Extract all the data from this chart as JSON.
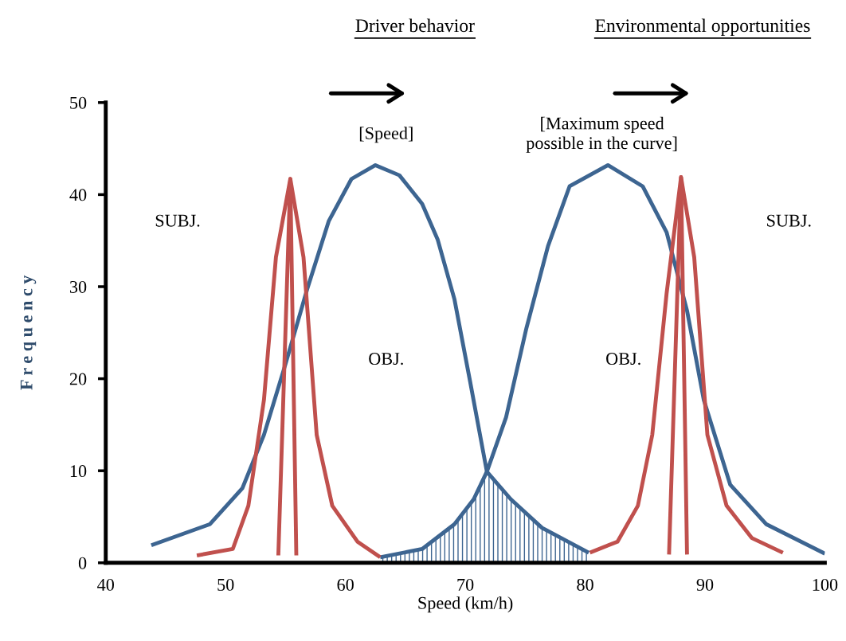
{
  "chart_data": {
    "type": "line",
    "xlabel": "Speed (km/h)",
    "ylabel": "F r e q u e n c y",
    "xlim": [
      40,
      100
    ],
    "xticks": [
      40,
      50,
      60,
      70,
      80,
      90,
      100
    ],
    "ylim": [
      0,
      50
    ],
    "yticks": [
      0,
      10,
      20,
      30,
      40,
      50
    ],
    "grid": false,
    "legend": false,
    "marker": "none",
    "line_style": "solid",
    "series": [
      {
        "type": "area",
        "color": "#3d6591",
        "x": [
          62.9,
          66.4,
          69.1,
          70.7,
          71.8,
          73.8,
          76.4,
          80.3
        ],
        "values": [
          0.6,
          1.5,
          4.2,
          6.9,
          9.9,
          6.9,
          3.8,
          1.1
        ]
      },
      {
        "color": "#3d6591",
        "x": [
          43.8,
          48.7,
          51.4,
          53.2,
          55.0,
          56.8,
          58.6,
          60.5,
          62.5,
          64.5,
          66.4,
          67.7,
          69.1,
          70.4,
          71.8,
          73.8,
          76.4,
          80.3
        ],
        "values": [
          1.9,
          4.2,
          8.1,
          13.9,
          21.6,
          29.7,
          37.1,
          41.7,
          43.2,
          42.1,
          39.0,
          35.1,
          28.6,
          19.7,
          9.9,
          6.9,
          3.8,
          1.1
        ]
      },
      {
        "color": "#3d6591",
        "x": [
          62.9,
          66.4,
          69.1,
          70.7,
          71.8,
          73.4,
          75.1,
          76.9,
          78.7,
          81.9,
          84.8,
          86.8,
          88.5,
          89.9,
          92.1,
          95.1,
          100
        ],
        "values": [
          0.6,
          1.5,
          4.2,
          6.9,
          9.9,
          15.8,
          25.5,
          34.4,
          40.9,
          43.2,
          40.9,
          35.9,
          27.4,
          17.7,
          8.5,
          4.2,
          1.0
        ]
      },
      {
        "color": "#c0504d",
        "x": [
          47.6,
          50.6,
          51.9,
          53.2,
          54.2,
          55.4,
          56.5,
          57.6,
          58.9,
          61.0,
          62.9
        ],
        "values": [
          0.8,
          1.5,
          6.2,
          17.7,
          33.2,
          41.7,
          33.2,
          13.9,
          6.2,
          2.3,
          0.6
        ]
      },
      {
        "color": "#c0504d",
        "x": [
          54.4,
          55.4,
          55.9
        ],
        "values": [
          0.8,
          41.7,
          0.8
        ]
      },
      {
        "color": "#c0504d",
        "x": [
          80.4,
          82.7,
          84.4,
          85.6,
          86.8,
          88.0,
          89.1,
          90.2,
          91.8,
          93.9,
          96.5
        ],
        "values": [
          1.1,
          2.3,
          6.2,
          13.9,
          29.3,
          41.9,
          33.2,
          13.9,
          6.2,
          2.7,
          1.1
        ]
      },
      {
        "color": "#c0504d",
        "x": [
          87.0,
          88.0,
          88.5
        ],
        "values": [
          0.9,
          41.9,
          0.9
        ]
      }
    ],
    "annotations": [
      "Driver behavior",
      "Environmental opportunities",
      "SUBJ.",
      "OBJ.",
      "[Speed]",
      "[Maximum speed\npossible in the curve]",
      "OBJ.",
      "SUBJ."
    ]
  }
}
